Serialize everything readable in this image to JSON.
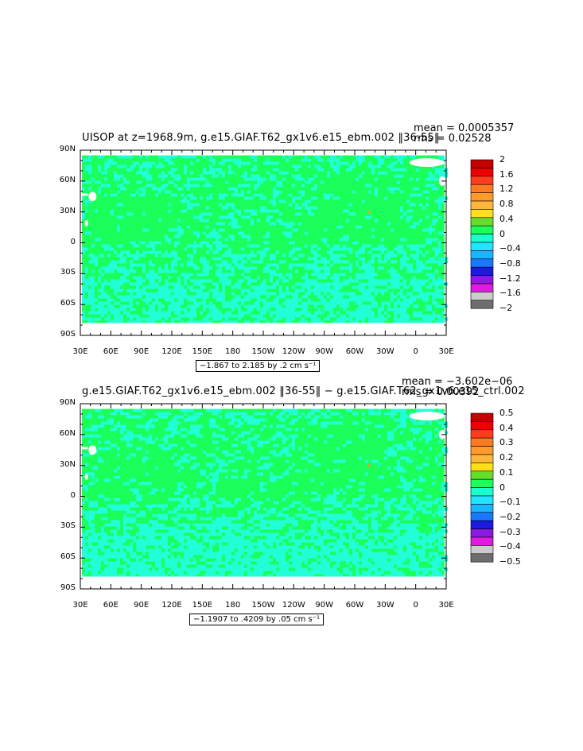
{
  "panels": [
    {
      "title": "UISOP at z=1968.9m, g.e15.GIAF.T62_gx1v6.e15_ebm.002 ‖36-55‖",
      "mean_text": "mean = 0.0005357",
      "rms_text": "rms = 0.02528",
      "range_text": "−1.867 to 2.185 by .2 cm s⁻¹",
      "colorbar_labels": [
        "2",
        "1.6",
        "1.2",
        "0.8",
        "0.4",
        "0",
        "−0.4",
        "−0.8",
        "−1.2",
        "−1.6",
        "−2"
      ]
    },
    {
      "title": "g.e15.GIAF.T62_gx1v6.e15_ebm.002 ‖36-55‖ − g.e15.GIAF.T62_gx1v6.e15_ctrl.002",
      "mean_text": "mean = −3.602e−06",
      "rms_text": "rms = 0.00392",
      "range_text": "−1.1907 to .4209 by .05 cm s⁻¹",
      "colorbar_labels": [
        "0.5",
        "0.4",
        "0.3",
        "0.2",
        "0.1",
        "0",
        "−0.1",
        "−0.2",
        "−0.3",
        "−0.4",
        "−0.5"
      ]
    }
  ],
  "axes": {
    "y_ticks": [
      "90N",
      "60N",
      "30N",
      "0",
      "30S",
      "60S",
      "90S"
    ],
    "x_ticks": [
      "30E",
      "60E",
      "90E",
      "120E",
      "150E",
      "180",
      "150W",
      "120W",
      "90W",
      "60W",
      "30W",
      "0",
      "30E"
    ]
  },
  "colors": {
    "scale": [
      "#c40000",
      "#ee0000",
      "#ff3c1e",
      "#ff7b22",
      "#ff9a2c",
      "#ffb63c",
      "#ffdf1a",
      "#66dd2c",
      "#1aff5a",
      "#1affd0",
      "#22e6ff",
      "#1ab4ff",
      "#1a78ff",
      "#1a1ae0",
      "#8c1ae0",
      "#e01ae0",
      "#cccccc",
      "#6e6e6e"
    ],
    "ocean_base": "#1aff5a",
    "ocean_anomaly": "#22ffd8"
  },
  "chart_data": [
    {
      "type": "heatmap",
      "title": "UISOP at z=1968.9m, g.e15.GIAF.T62_gx1v6.e15_ebm.002 ‖36-55‖",
      "units": "cm s⁻¹",
      "xlim": [
        "30E",
        "30E"
      ],
      "ylim": [
        "90S",
        "90N"
      ],
      "x_ticks": [
        "30E",
        "60E",
        "90E",
        "120E",
        "150E",
        "180",
        "150W",
        "120W",
        "90W",
        "60W",
        "30W",
        "0",
        "30E"
      ],
      "y_ticks": [
        "90N",
        "60N",
        "30N",
        "0",
        "30S",
        "60S",
        "90S"
      ],
      "contour_levels": [
        -2,
        -1.6,
        -1.2,
        -0.8,
        -0.4,
        0,
        0.4,
        0.8,
        1.2,
        1.6,
        2
      ],
      "data_min": -1.867,
      "data_max": 2.185,
      "contour_interval": 0.2,
      "mean": 0.0005357,
      "rms": 0.02528,
      "legend": "right"
    },
    {
      "type": "heatmap",
      "title": "g.e15.GIAF.T62_gx1v6.e15_ebm.002 ‖36-55‖ − g.e15.GIAF.T62_gx1v6.e15_ctrl.002",
      "units": "cm s⁻¹",
      "xlim": [
        "30E",
        "30E"
      ],
      "ylim": [
        "90S",
        "90N"
      ],
      "x_ticks": [
        "30E",
        "60E",
        "90E",
        "120E",
        "150E",
        "180",
        "150W",
        "120W",
        "90W",
        "60W",
        "30W",
        "0",
        "30E"
      ],
      "y_ticks": [
        "90N",
        "60N",
        "30N",
        "0",
        "30S",
        "60S",
        "90S"
      ],
      "contour_levels": [
        -0.5,
        -0.4,
        -0.3,
        -0.2,
        -0.1,
        0,
        0.1,
        0.2,
        0.3,
        0.4,
        0.5
      ],
      "data_min": -1.1907,
      "data_max": 0.4209,
      "contour_interval": 0.05,
      "mean": -3.602e-06,
      "rms": 0.00392,
      "legend": "right"
    }
  ]
}
